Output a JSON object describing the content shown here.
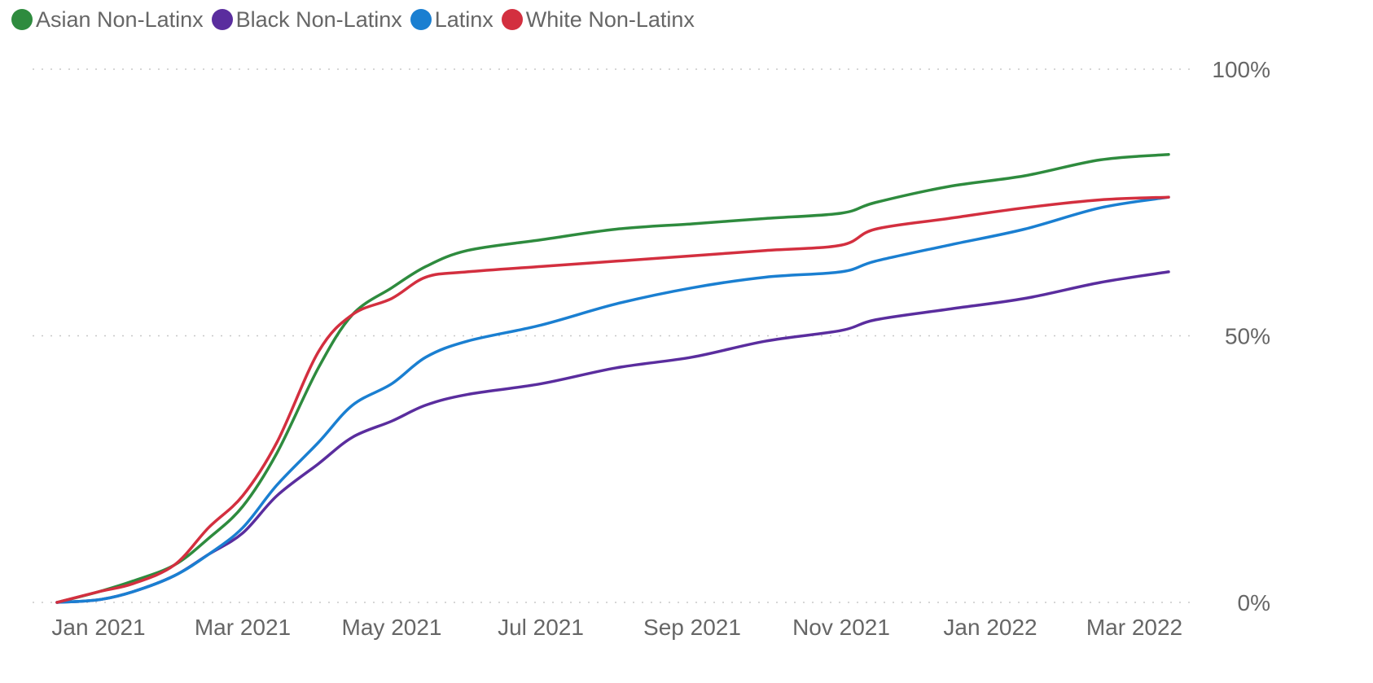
{
  "legend": {
    "items": [
      {
        "label": "Asian Non-Latinx",
        "color": "#2e8b3e"
      },
      {
        "label": "Black Non-Latinx",
        "color": "#5a2d9e"
      },
      {
        "label": "Latinx",
        "color": "#1a7fd1"
      },
      {
        "label": "White Non-Latinx",
        "color": "#d32f3f"
      }
    ]
  },
  "chart_data": {
    "type": "line",
    "title": "",
    "xlabel": "",
    "ylabel": "",
    "x_ticks": [
      "Jan 2021",
      "Mar 2021",
      "May 2021",
      "Jul 2021",
      "Sep 2021",
      "Nov 2021",
      "Jan 2022",
      "Mar 2022"
    ],
    "y_ticks": [
      "0%",
      "50%",
      "100%"
    ],
    "ylim": [
      0,
      100
    ],
    "xlim": [
      "2020-12-15",
      "2022-03-15"
    ],
    "grid": true,
    "legend_position": "top-left",
    "series": [
      {
        "name": "Asian Non-Latinx",
        "color": "#2e8b3e",
        "points": [
          [
            "2020-12-15",
            0
          ],
          [
            "2021-01-01",
            2
          ],
          [
            "2021-01-15",
            4
          ],
          [
            "2021-02-01",
            7
          ],
          [
            "2021-02-15",
            12
          ],
          [
            "2021-03-01",
            18
          ],
          [
            "2021-03-15",
            28
          ],
          [
            "2021-04-01",
            44
          ],
          [
            "2021-04-15",
            54
          ],
          [
            "2021-05-01",
            59
          ],
          [
            "2021-05-15",
            63
          ],
          [
            "2021-06-01",
            66
          ],
          [
            "2021-07-01",
            68
          ],
          [
            "2021-08-01",
            70
          ],
          [
            "2021-09-01",
            71
          ],
          [
            "2021-10-01",
            72
          ],
          [
            "2021-11-01",
            73
          ],
          [
            "2021-11-15",
            75
          ],
          [
            "2021-12-15",
            78
          ],
          [
            "2022-01-15",
            80
          ],
          [
            "2022-02-15",
            83
          ],
          [
            "2022-03-15",
            84
          ]
        ]
      },
      {
        "name": "Black Non-Latinx",
        "color": "#5a2d9e",
        "points": [
          [
            "2020-12-15",
            0
          ],
          [
            "2021-01-01",
            0.5
          ],
          [
            "2021-01-15",
            2
          ],
          [
            "2021-02-01",
            5
          ],
          [
            "2021-02-15",
            9
          ],
          [
            "2021-03-01",
            13
          ],
          [
            "2021-03-15",
            20
          ],
          [
            "2021-04-01",
            26
          ],
          [
            "2021-04-15",
            31
          ],
          [
            "2021-05-01",
            34
          ],
          [
            "2021-05-15",
            37
          ],
          [
            "2021-06-01",
            39
          ],
          [
            "2021-07-01",
            41
          ],
          [
            "2021-08-01",
            44
          ],
          [
            "2021-09-01",
            46
          ],
          [
            "2021-10-01",
            49
          ],
          [
            "2021-11-01",
            51
          ],
          [
            "2021-11-15",
            53
          ],
          [
            "2021-12-15",
            55
          ],
          [
            "2022-01-15",
            57
          ],
          [
            "2022-02-15",
            60
          ],
          [
            "2022-03-15",
            62
          ]
        ]
      },
      {
        "name": "Latinx",
        "color": "#1a7fd1",
        "points": [
          [
            "2020-12-15",
            0
          ],
          [
            "2021-01-01",
            0.5
          ],
          [
            "2021-01-15",
            2
          ],
          [
            "2021-02-01",
            5
          ],
          [
            "2021-02-15",
            9
          ],
          [
            "2021-03-01",
            14
          ],
          [
            "2021-03-15",
            22
          ],
          [
            "2021-04-01",
            30
          ],
          [
            "2021-04-15",
            37
          ],
          [
            "2021-05-01",
            41
          ],
          [
            "2021-05-15",
            46
          ],
          [
            "2021-06-01",
            49
          ],
          [
            "2021-07-01",
            52
          ],
          [
            "2021-08-01",
            56
          ],
          [
            "2021-09-01",
            59
          ],
          [
            "2021-10-01",
            61
          ],
          [
            "2021-11-01",
            62
          ],
          [
            "2021-11-15",
            64
          ],
          [
            "2021-12-15",
            67
          ],
          [
            "2022-01-15",
            70
          ],
          [
            "2022-02-15",
            74
          ],
          [
            "2022-03-15",
            76
          ]
        ]
      },
      {
        "name": "White Non-Latinx",
        "color": "#d32f3f",
        "points": [
          [
            "2020-12-15",
            0
          ],
          [
            "2021-01-01",
            2
          ],
          [
            "2021-01-15",
            3.5
          ],
          [
            "2021-02-01",
            7
          ],
          [
            "2021-02-15",
            14
          ],
          [
            "2021-03-01",
            20
          ],
          [
            "2021-03-15",
            30
          ],
          [
            "2021-04-01",
            47
          ],
          [
            "2021-04-15",
            54
          ],
          [
            "2021-05-01",
            57
          ],
          [
            "2021-05-15",
            61
          ],
          [
            "2021-06-01",
            62
          ],
          [
            "2021-07-01",
            63
          ],
          [
            "2021-08-01",
            64
          ],
          [
            "2021-09-01",
            65
          ],
          [
            "2021-10-01",
            66
          ],
          [
            "2021-11-01",
            67
          ],
          [
            "2021-11-15",
            70
          ],
          [
            "2021-12-15",
            72
          ],
          [
            "2022-01-15",
            74
          ],
          [
            "2022-02-15",
            75.5
          ],
          [
            "2022-03-15",
            76
          ]
        ]
      }
    ]
  }
}
